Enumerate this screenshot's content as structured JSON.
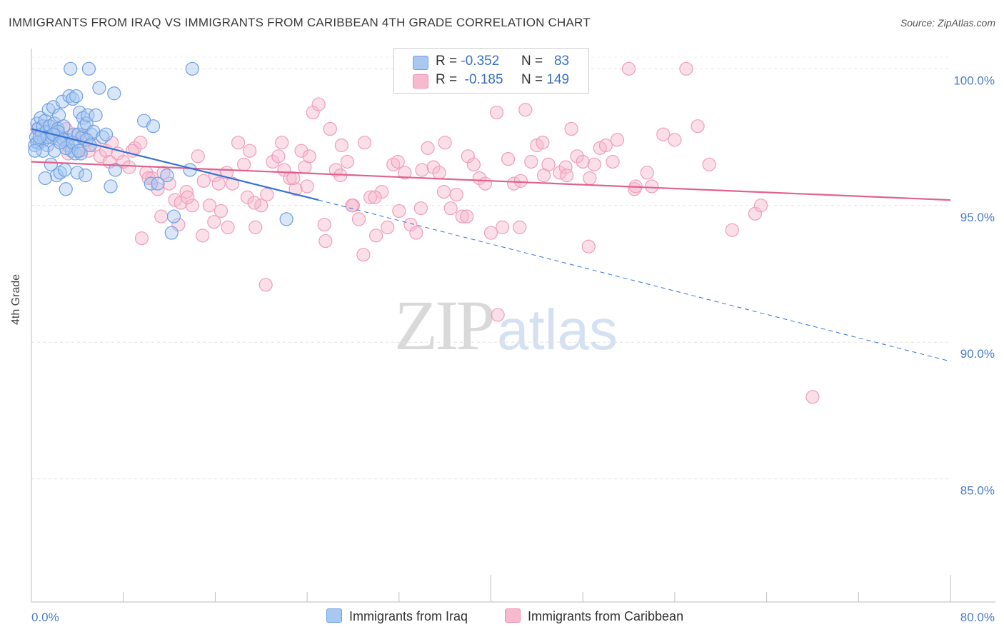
{
  "header": {
    "title": "IMMIGRANTS FROM IRAQ VS IMMIGRANTS FROM CARIBBEAN 4TH GRADE CORRELATION CHART",
    "source": "Source: ZipAtlas.com"
  },
  "watermark": {
    "zip": "ZIP",
    "atlas": "atlas"
  },
  "legend": {
    "rows": [
      {
        "r_label": "R =",
        "r_value": "-0.352",
        "n_label": "N =",
        "n_value": "83",
        "color": "#a9c8f0"
      },
      {
        "r_label": "R =",
        "r_value": "-0.185",
        "n_label": "N =",
        "n_value": "149",
        "color": "#f7b9cd"
      }
    ]
  },
  "bottom_legend": {
    "iraq": "Immigrants from Iraq",
    "caribbean": "Immigrants from Caribbean"
  },
  "chart_data": {
    "type": "scatter",
    "title": "IMMIGRANTS FROM IRAQ VS IMMIGRANTS FROM CARIBBEAN 4TH GRADE CORRELATION CHART",
    "xlabel": "",
    "ylabel": "4th Grade",
    "xlim": [
      0,
      80
    ],
    "ylim": [
      80.5,
      101
    ],
    "x_tick_labels": [
      "0.0%",
      "80.0%"
    ],
    "y_ticks": [
      100,
      95,
      90,
      85
    ],
    "y_tick_labels": [
      "100.0%",
      "95.0%",
      "90.0%",
      "85.0%"
    ],
    "grid": "horizontal dashed",
    "legend_placement": "top-center",
    "colors": {
      "iraq": "#6ea0e6",
      "caribbean": "#f08db0",
      "iraq_line": "#3572d1",
      "caribbean_line": "#e0628f"
    },
    "series": [
      {
        "name": "Immigrants from Iraq",
        "r": -0.352,
        "n": 83,
        "trend": {
          "x": [
            0,
            25
          ],
          "y": [
            97.8,
            95.2
          ],
          "dashed_to": {
            "x": 80,
            "y": 89.3
          }
        },
        "points": [
          [
            0.3,
            97.2
          ],
          [
            0.4,
            97.5
          ],
          [
            0.5,
            98.0
          ],
          [
            0.6,
            97.8
          ],
          [
            0.7,
            97.3
          ],
          [
            0.8,
            98.2
          ],
          [
            0.9,
            97.6
          ],
          [
            1.0,
            97.9
          ],
          [
            1.1,
            97.4
          ],
          [
            1.2,
            98.1
          ],
          [
            1.3,
            97.7
          ],
          [
            1.4,
            97.2
          ],
          [
            1.5,
            98.5
          ],
          [
            1.6,
            97.9
          ],
          [
            1.7,
            96.5
          ],
          [
            1.8,
            97.5
          ],
          [
            1.9,
            98.6
          ],
          [
            2.0,
            98.0
          ],
          [
            2.1,
            97.6
          ],
          [
            2.2,
            96.1
          ],
          [
            2.3,
            97.8
          ],
          [
            2.4,
            98.3
          ],
          [
            2.5,
            96.2
          ],
          [
            2.6,
            97.5
          ],
          [
            2.7,
            98.8
          ],
          [
            2.8,
            97.9
          ],
          [
            2.9,
            96.3
          ],
          [
            3.0,
            95.6
          ],
          [
            3.1,
            97.4
          ],
          [
            3.2,
            97.2
          ],
          [
            3.3,
            99.0
          ],
          [
            3.4,
            100.0
          ],
          [
            3.5,
            97.0
          ],
          [
            3.6,
            98.9
          ],
          [
            3.7,
            97.6
          ],
          [
            3.8,
            96.9
          ],
          [
            3.9,
            99.0
          ],
          [
            4.0,
            96.2
          ],
          [
            4.1,
            97.6
          ],
          [
            4.2,
            98.4
          ],
          [
            4.3,
            96.9
          ],
          [
            4.4,
            97.5
          ],
          [
            4.5,
            98.2
          ],
          [
            4.6,
            97.9
          ],
          [
            4.7,
            96.1
          ],
          [
            4.8,
            98.0
          ],
          [
            4.9,
            98.3
          ],
          [
            5.0,
            100.0
          ],
          [
            5.2,
            97.6
          ],
          [
            5.4,
            97.7
          ],
          [
            5.6,
            98.3
          ],
          [
            5.9,
            99.3
          ],
          [
            6.2,
            97.5
          ],
          [
            6.5,
            97.6
          ],
          [
            6.9,
            95.7
          ],
          [
            7.3,
            96.3
          ],
          [
            7.2,
            99.1
          ],
          [
            9.8,
            98.1
          ],
          [
            10.4,
            95.8
          ],
          [
            10.6,
            97.9
          ],
          [
            11.0,
            95.8
          ],
          [
            11.8,
            96.1
          ],
          [
            12.2,
            94.0
          ],
          [
            12.4,
            94.6
          ],
          [
            13.8,
            96.3
          ],
          [
            14.0,
            100.0
          ],
          [
            22.2,
            94.5
          ],
          [
            0.5,
            97.3
          ],
          [
            1.0,
            97.0
          ],
          [
            1.4,
            97.5
          ],
          [
            2.0,
            97.0
          ],
          [
            2.3,
            97.7
          ],
          [
            2.8,
            97.4
          ],
          [
            3.0,
            97.1
          ],
          [
            3.6,
            97.3
          ],
          [
            4.1,
            97.0
          ],
          [
            0.3,
            97.0
          ],
          [
            0.7,
            97.5
          ],
          [
            1.2,
            96.0
          ],
          [
            1.9,
            97.6
          ],
          [
            2.5,
            97.3
          ],
          [
            4.8,
            97.4
          ],
          [
            5.1,
            97.2
          ]
        ]
      },
      {
        "name": "Immigrants from Caribbean",
        "r": -0.185,
        "n": 149,
        "trend": {
          "x": [
            0,
            80
          ],
          "y": [
            96.6,
            95.2
          ]
        },
        "points": [
          [
            0.5,
            97.8
          ],
          [
            1.0,
            97.5
          ],
          [
            1.5,
            97.9
          ],
          [
            2.0,
            97.6
          ],
          [
            2.5,
            97.4
          ],
          [
            3.0,
            97.8
          ],
          [
            3.5,
            97.3
          ],
          [
            4.0,
            97.6
          ],
          [
            4.5,
            97.5
          ],
          [
            5.0,
            97.0
          ],
          [
            5.5,
            97.2
          ],
          [
            6.0,
            96.8
          ],
          [
            6.5,
            97.0
          ],
          [
            7.0,
            97.3
          ],
          [
            7.5,
            96.9
          ],
          [
            8.0,
            96.6
          ],
          [
            8.5,
            96.4
          ],
          [
            9.0,
            97.1
          ],
          [
            9.5,
            97.3
          ],
          [
            10.0,
            96.2
          ],
          [
            10.5,
            96.0
          ],
          [
            11.0,
            95.6
          ],
          [
            11.5,
            96.2
          ],
          [
            12.0,
            95.8
          ],
          [
            12.5,
            95.2
          ],
          [
            13.0,
            95.1
          ],
          [
            13.5,
            95.5
          ],
          [
            14.0,
            95.0
          ],
          [
            14.5,
            96.8
          ],
          [
            15.0,
            95.9
          ],
          [
            15.5,
            95.0
          ],
          [
            16.0,
            96.1
          ],
          [
            16.5,
            94.8
          ],
          [
            17.0,
            96.2
          ],
          [
            17.5,
            95.8
          ],
          [
            18.0,
            97.3
          ],
          [
            18.5,
            96.5
          ],
          [
            19.0,
            97.0
          ],
          [
            19.5,
            94.2
          ],
          [
            20.0,
            95.0
          ],
          [
            20.5,
            95.4
          ],
          [
            21.0,
            96.6
          ],
          [
            21.5,
            96.8
          ],
          [
            22.0,
            96.3
          ],
          [
            22.5,
            96.0
          ],
          [
            23.0,
            95.6
          ],
          [
            23.5,
            97.0
          ],
          [
            24.0,
            95.7
          ],
          [
            24.5,
            98.4
          ],
          [
            25.0,
            98.7
          ],
          [
            25.5,
            94.3
          ],
          [
            26.0,
            97.8
          ],
          [
            26.5,
            96.3
          ],
          [
            27.0,
            97.2
          ],
          [
            27.5,
            96.6
          ],
          [
            28.0,
            95.0
          ],
          [
            28.5,
            94.5
          ],
          [
            29.0,
            97.3
          ],
          [
            29.5,
            95.3
          ],
          [
            30.0,
            93.9
          ],
          [
            30.5,
            95.5
          ],
          [
            31.0,
            94.2
          ],
          [
            31.5,
            96.5
          ],
          [
            32.0,
            94.8
          ],
          [
            32.5,
            96.2
          ],
          [
            33.0,
            94.3
          ],
          [
            33.5,
            94.0
          ],
          [
            34.0,
            96.3
          ],
          [
            34.5,
            97.1
          ],
          [
            35.0,
            96.4
          ],
          [
            35.5,
            96.2
          ],
          [
            36.0,
            97.3
          ],
          [
            36.5,
            94.9
          ],
          [
            37.0,
            95.4
          ],
          [
            37.5,
            94.6
          ],
          [
            38.0,
            96.8
          ],
          [
            38.5,
            96.5
          ],
          [
            39.0,
            96.0
          ],
          [
            39.5,
            95.8
          ],
          [
            40.0,
            94.0
          ],
          [
            40.5,
            98.4
          ],
          [
            41.0,
            94.2
          ],
          [
            41.5,
            96.7
          ],
          [
            42.0,
            95.8
          ],
          [
            42.5,
            94.2
          ],
          [
            43.0,
            98.5
          ],
          [
            43.5,
            96.6
          ],
          [
            44.0,
            97.2
          ],
          [
            44.5,
            97.3
          ],
          [
            45.0,
            96.5
          ],
          [
            46.0,
            96.2
          ],
          [
            46.5,
            96.4
          ],
          [
            47.0,
            97.8
          ],
          [
            47.5,
            96.8
          ],
          [
            48.0,
            96.6
          ],
          [
            48.5,
            93.5
          ],
          [
            49.0,
            96.5
          ],
          [
            49.5,
            97.1
          ],
          [
            50.0,
            97.2
          ],
          [
            51.0,
            97.4
          ],
          [
            52.0,
            100.0
          ],
          [
            52.5,
            95.6
          ],
          [
            54.0,
            95.7
          ],
          [
            55.0,
            97.6
          ],
          [
            56.0,
            97.4
          ],
          [
            57.0,
            100.0
          ],
          [
            58.0,
            97.9
          ],
          [
            59.0,
            96.5
          ],
          [
            61.0,
            94.1
          ],
          [
            63.0,
            94.7
          ],
          [
            63.5,
            95.0
          ],
          [
            68.0,
            88.0
          ],
          [
            3.2,
            96.9
          ],
          [
            4.3,
            97.0
          ],
          [
            6.8,
            96.6
          ],
          [
            8.8,
            97.0
          ],
          [
            9.6,
            93.8
          ],
          [
            10.2,
            96.0
          ],
          [
            11.3,
            94.6
          ],
          [
            12.8,
            94.3
          ],
          [
            13.6,
            95.3
          ],
          [
            14.9,
            93.9
          ],
          [
            15.9,
            94.4
          ],
          [
            17.1,
            94.2
          ],
          [
            18.8,
            95.3
          ],
          [
            20.4,
            92.1
          ],
          [
            21.8,
            97.3
          ],
          [
            23.8,
            96.4
          ],
          [
            25.6,
            93.7
          ],
          [
            27.9,
            95.0
          ],
          [
            28.9,
            93.2
          ],
          [
            29.9,
            95.3
          ],
          [
            31.9,
            96.6
          ],
          [
            33.9,
            94.9
          ],
          [
            35.9,
            95.5
          ],
          [
            37.9,
            94.6
          ],
          [
            40.6,
            91.0
          ],
          [
            42.6,
            95.9
          ],
          [
            44.6,
            96.1
          ],
          [
            46.6,
            96.1
          ],
          [
            48.6,
            96.0
          ],
          [
            50.6,
            96.6
          ],
          [
            52.6,
            95.7
          ],
          [
            53.6,
            96.2
          ],
          [
            22.8,
            96.0
          ],
          [
            24.2,
            96.8
          ],
          [
            26.9,
            96.1
          ],
          [
            19.4,
            95.1
          ],
          [
            16.3,
            95.8
          ]
        ]
      }
    ]
  }
}
